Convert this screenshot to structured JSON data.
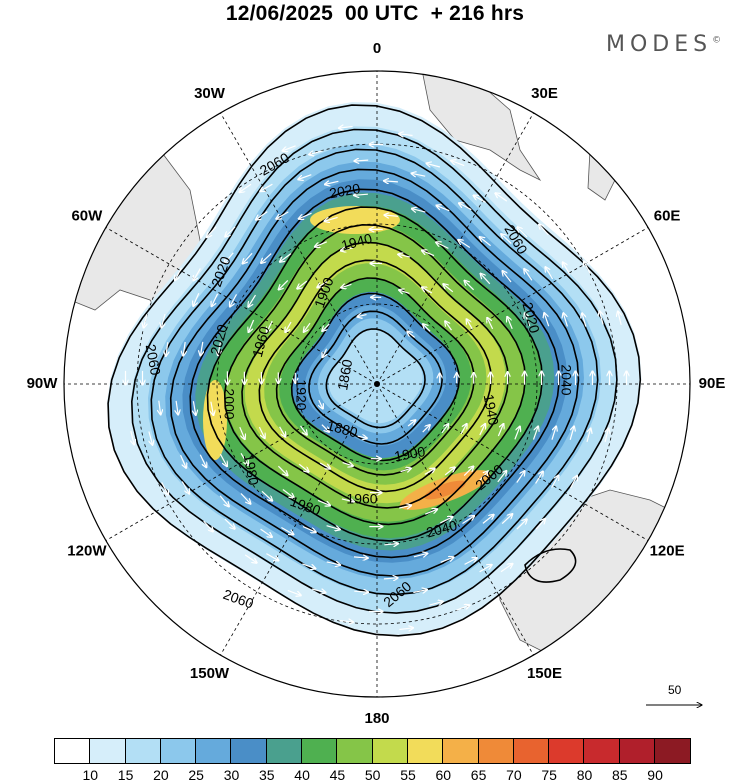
{
  "title": "12/06/2025  00 UTC  + 216 hrs",
  "brand": "MODES",
  "brand_mark": "©",
  "longitude_labels": [
    {
      "text": "0",
      "lon": 0
    },
    {
      "text": "30E",
      "lon": 30
    },
    {
      "text": "60E",
      "lon": 60
    },
    {
      "text": "90E",
      "lon": 90
    },
    {
      "text": "120E",
      "lon": 120
    },
    {
      "text": "150E",
      "lon": 150
    },
    {
      "text": "180",
      "lon": 180
    },
    {
      "text": "150W",
      "lon": 210
    },
    {
      "text": "120W",
      "lon": 240
    },
    {
      "text": "90W",
      "lon": 270
    },
    {
      "text": "60W",
      "lon": 300
    },
    {
      "text": "30W",
      "lon": 330
    }
  ],
  "contour_labels": [
    {
      "text": "2060",
      "lat_offset": 0.0
    },
    {
      "text": "2060",
      "lat_offset": 0.0
    },
    {
      "text": "2060",
      "lat_offset": 0.0
    },
    {
      "text": "2060",
      "lat_offset": 0.0
    },
    {
      "text": "2060",
      "lat_offset": 0.0
    },
    {
      "text": "2040",
      "lat_offset": 0.0
    },
    {
      "text": "2040",
      "lat_offset": 0.0
    },
    {
      "text": "2020",
      "lat_offset": 0.0
    },
    {
      "text": "2020",
      "lat_offset": 0.0
    },
    {
      "text": "2020",
      "lat_offset": 0.0
    },
    {
      "text": "2020",
      "lat_offset": 0.0
    },
    {
      "text": "2000",
      "lat_offset": 0.0
    },
    {
      "text": "2000",
      "lat_offset": 0.0
    },
    {
      "text": "1980",
      "lat_offset": 0.0
    },
    {
      "text": "1980",
      "lat_offset": 0.0
    },
    {
      "text": "1960",
      "lat_offset": 0.0
    },
    {
      "text": "1960",
      "lat_offset": 0.0
    },
    {
      "text": "1940",
      "lat_offset": 0.0
    },
    {
      "text": "1940",
      "lat_offset": 0.0
    },
    {
      "text": "1920",
      "lat_offset": 0.0
    },
    {
      "text": "1900",
      "lat_offset": 0.0
    },
    {
      "text": "1900",
      "lat_offset": 0.0
    },
    {
      "text": "1880",
      "lat_offset": 0.0
    },
    {
      "text": "1860",
      "lat_offset": 0.0
    }
  ],
  "reference_vector_label": "50",
  "colorbar": {
    "colors": [
      "#ffffff",
      "#d6eefa",
      "#b3dff5",
      "#8cc8ec",
      "#65aadc",
      "#4a8ec7",
      "#4aa08e",
      "#4fb050",
      "#85c548",
      "#c3da4c",
      "#f2dc5a",
      "#f4b048",
      "#ef8a38",
      "#e8632f",
      "#dc3a2c",
      "#c82a2d",
      "#b01f2b",
      "#8c1a23"
    ],
    "tick_labels": [
      "10",
      "15",
      "20",
      "25",
      "30",
      "35",
      "40",
      "45",
      "50",
      "55",
      "60",
      "65",
      "70",
      "75",
      "80",
      "85",
      "90"
    ]
  },
  "colors": {
    "land": "#e8e8e8",
    "coast": "#555555",
    "contour": "#000000",
    "vectors": "#ffffff"
  }
}
